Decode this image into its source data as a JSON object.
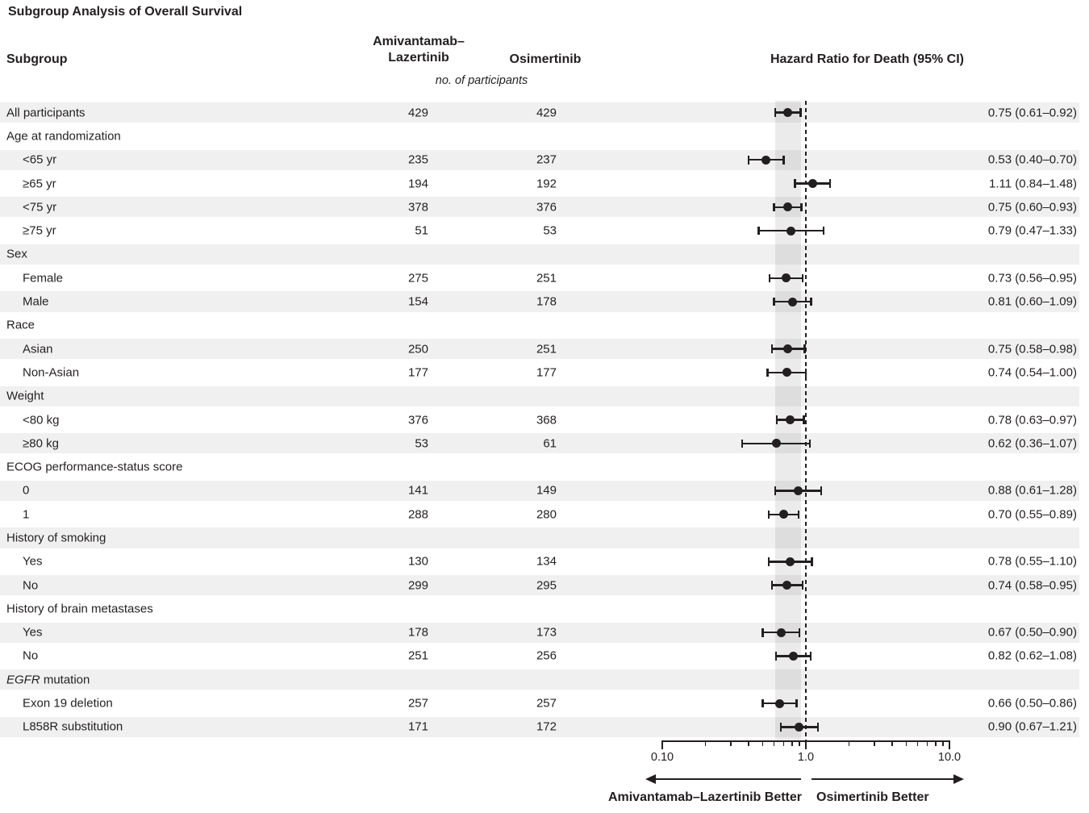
{
  "title": "Subgroup Analysis of Overall Survival",
  "columns": {
    "subgroup": "Subgroup",
    "arm1_line1": "Amivantamab–",
    "arm1_line2": "Lazertinib",
    "arm2": "Osimertinib",
    "hr": "Hazard Ratio for Death (95% CI)",
    "units_note": "no. of participants"
  },
  "footer": {
    "left_better": "Amivantamab–Lazertinib Better",
    "right_better": "Osimertinib Better"
  },
  "colors": {
    "text": "#231f20",
    "stripe": "#f0f0f0",
    "marker": "#231f20"
  },
  "chart_data": {
    "type": "forest",
    "x_scale": "log10",
    "axis": {
      "min": 0.1,
      "max": 10,
      "major": [
        {
          "value": 0.1,
          "label": "0.10"
        },
        {
          "value": 1.0,
          "label": "1.0"
        },
        {
          "value": 10.0,
          "label": "10.0"
        }
      ],
      "minor": [
        0.2,
        0.3,
        0.4,
        0.5,
        0.6,
        0.7,
        0.8,
        0.9,
        2,
        3,
        4,
        5,
        6,
        7,
        8,
        9
      ]
    },
    "reference_line": 1.0,
    "reference_band": [
      0.61,
      0.92
    ],
    "rows": [
      {
        "label": "All participants",
        "indent": 0,
        "counts": [
          "429",
          "429"
        ],
        "est": 0.75,
        "lo": 0.61,
        "hi": 0.92,
        "ci_text": "0.75 (0.61–0.92)"
      },
      {
        "label": "Age at randomization",
        "indent": 0
      },
      {
        "label": "<65 yr",
        "indent": 1,
        "counts": [
          "235",
          "237"
        ],
        "est": 0.53,
        "lo": 0.4,
        "hi": 0.7,
        "ci_text": "0.53 (0.40–0.70)"
      },
      {
        "label": "≥65 yr",
        "indent": 1,
        "counts": [
          "194",
          "192"
        ],
        "est": 1.11,
        "lo": 0.84,
        "hi": 1.48,
        "ci_text": "1.11 (0.84–1.48)"
      },
      {
        "label": "<75 yr",
        "indent": 1,
        "counts": [
          "378",
          "376"
        ],
        "est": 0.75,
        "lo": 0.6,
        "hi": 0.93,
        "ci_text": "0.75 (0.60–0.93)"
      },
      {
        "label": "≥75 yr",
        "indent": 1,
        "counts": [
          "51",
          "53"
        ],
        "est": 0.79,
        "lo": 0.47,
        "hi": 1.33,
        "ci_text": "0.79 (0.47–1.33)"
      },
      {
        "label": "Sex",
        "indent": 0
      },
      {
        "label": "Female",
        "indent": 1,
        "counts": [
          "275",
          "251"
        ],
        "est": 0.73,
        "lo": 0.56,
        "hi": 0.95,
        "ci_text": "0.73 (0.56–0.95)"
      },
      {
        "label": "Male",
        "indent": 1,
        "counts": [
          "154",
          "178"
        ],
        "est": 0.81,
        "lo": 0.6,
        "hi": 1.09,
        "ci_text": "0.81 (0.60–1.09)"
      },
      {
        "label": "Race",
        "indent": 0
      },
      {
        "label": "Asian",
        "indent": 1,
        "counts": [
          "250",
          "251"
        ],
        "est": 0.75,
        "lo": 0.58,
        "hi": 0.98,
        "ci_text": "0.75 (0.58–0.98)"
      },
      {
        "label": "Non-Asian",
        "indent": 1,
        "counts": [
          "177",
          "177"
        ],
        "est": 0.74,
        "lo": 0.54,
        "hi": 1.0,
        "ci_text": "0.74 (0.54–1.00)"
      },
      {
        "label": "Weight",
        "indent": 0
      },
      {
        "label": "<80 kg",
        "indent": 1,
        "counts": [
          "376",
          "368"
        ],
        "est": 0.78,
        "lo": 0.63,
        "hi": 0.97,
        "ci_text": "0.78 (0.63–0.97)"
      },
      {
        "label": "≥80 kg",
        "indent": 1,
        "counts": [
          "53",
          "61"
        ],
        "est": 0.62,
        "lo": 0.36,
        "hi": 1.07,
        "ci_text": "0.62 (0.36–1.07)"
      },
      {
        "label": "ECOG performance-status score",
        "indent": 0
      },
      {
        "label": "0",
        "indent": 1,
        "counts": [
          "141",
          "149"
        ],
        "est": 0.88,
        "lo": 0.61,
        "hi": 1.28,
        "ci_text": "0.88 (0.61–1.28)"
      },
      {
        "label": "1",
        "indent": 1,
        "counts": [
          "288",
          "280"
        ],
        "est": 0.7,
        "lo": 0.55,
        "hi": 0.89,
        "ci_text": "0.70 (0.55–0.89)"
      },
      {
        "label": "History of smoking",
        "indent": 0
      },
      {
        "label": "Yes",
        "indent": 1,
        "counts": [
          "130",
          "134"
        ],
        "est": 0.78,
        "lo": 0.55,
        "hi": 1.1,
        "ci_text": "0.78 (0.55–1.10)"
      },
      {
        "label": "No",
        "indent": 1,
        "counts": [
          "299",
          "295"
        ],
        "est": 0.74,
        "lo": 0.58,
        "hi": 0.95,
        "ci_text": "0.74 (0.58–0.95)"
      },
      {
        "label": "History of brain metastases",
        "indent": 0
      },
      {
        "label": "Yes",
        "indent": 1,
        "counts": [
          "178",
          "173"
        ],
        "est": 0.67,
        "lo": 0.5,
        "hi": 0.9,
        "ci_text": "0.67 (0.50–0.90)"
      },
      {
        "label": "No",
        "indent": 1,
        "counts": [
          "251",
          "256"
        ],
        "est": 0.82,
        "lo": 0.62,
        "hi": 1.08,
        "ci_text": "0.82 (0.62–1.08)"
      },
      {
        "italic_prefix": "EGFR",
        "label": " mutation",
        "indent": 0
      },
      {
        "label": "Exon 19 deletion",
        "indent": 1,
        "counts": [
          "257",
          "257"
        ],
        "est": 0.66,
        "lo": 0.5,
        "hi": 0.86,
        "ci_text": "0.66 (0.50–0.86)"
      },
      {
        "label": "L858R substitution",
        "indent": 1,
        "counts": [
          "171",
          "172"
        ],
        "est": 0.9,
        "lo": 0.67,
        "hi": 1.21,
        "ci_text": "0.90 (0.67–1.21)"
      }
    ]
  }
}
